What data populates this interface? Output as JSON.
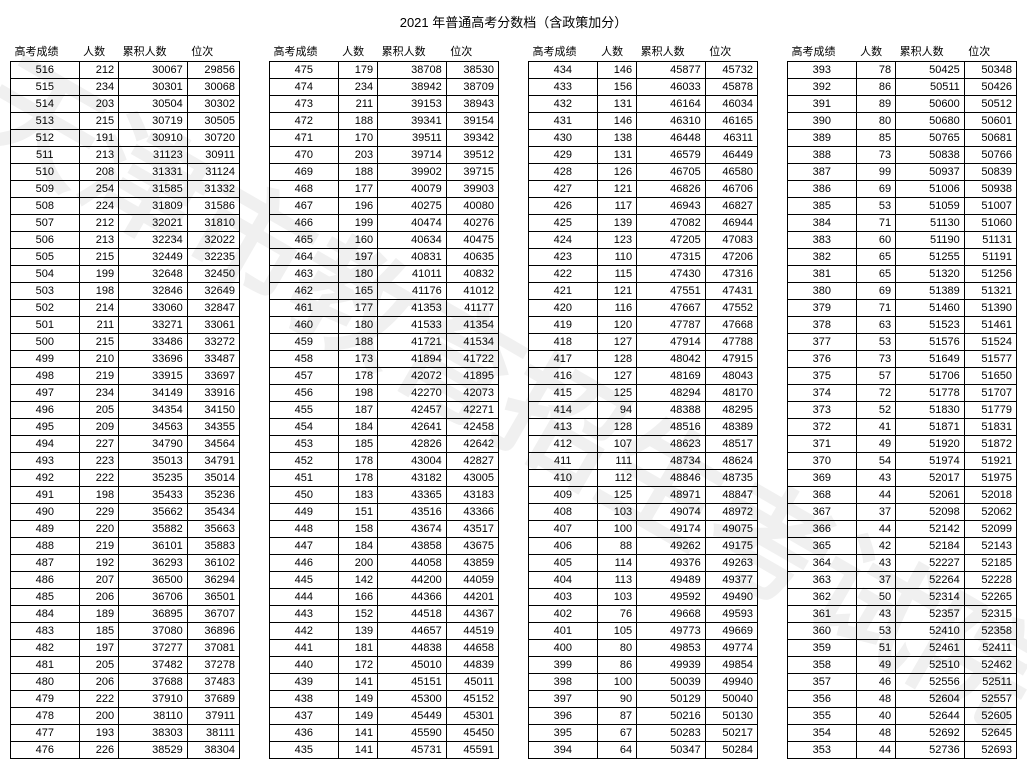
{
  "title": "2021 年普通高考分数档（含政策加分）",
  "watermark": "天津市教育招生考试院",
  "headers": [
    "高考成绩",
    "人数",
    "累积人数",
    "位次"
  ],
  "columns": [
    [
      [
        516,
        212,
        30067,
        29856
      ],
      [
        515,
        234,
        30301,
        30068
      ],
      [
        514,
        203,
        30504,
        30302
      ],
      [
        513,
        215,
        30719,
        30505
      ],
      [
        512,
        191,
        30910,
        30720
      ],
      [
        511,
        213,
        31123,
        30911
      ],
      [
        510,
        208,
        31331,
        31124
      ],
      [
        509,
        254,
        31585,
        31332
      ],
      [
        508,
        224,
        31809,
        31586
      ],
      [
        507,
        212,
        32021,
        31810
      ],
      [
        506,
        213,
        32234,
        32022
      ],
      [
        505,
        215,
        32449,
        32235
      ],
      [
        504,
        199,
        32648,
        32450
      ],
      [
        503,
        198,
        32846,
        32649
      ],
      [
        502,
        214,
        33060,
        32847
      ],
      [
        501,
        211,
        33271,
        33061
      ],
      [
        500,
        215,
        33486,
        33272
      ],
      [
        499,
        210,
        33696,
        33487
      ],
      [
        498,
        219,
        33915,
        33697
      ],
      [
        497,
        234,
        34149,
        33916
      ],
      [
        496,
        205,
        34354,
        34150
      ],
      [
        495,
        209,
        34563,
        34355
      ],
      [
        494,
        227,
        34790,
        34564
      ],
      [
        493,
        223,
        35013,
        34791
      ],
      [
        492,
        222,
        35235,
        35014
      ],
      [
        491,
        198,
        35433,
        35236
      ],
      [
        490,
        229,
        35662,
        35434
      ],
      [
        489,
        220,
        35882,
        35663
      ],
      [
        488,
        219,
        36101,
        35883
      ],
      [
        487,
        192,
        36293,
        36102
      ],
      [
        486,
        207,
        36500,
        36294
      ],
      [
        485,
        206,
        36706,
        36501
      ],
      [
        484,
        189,
        36895,
        36707
      ],
      [
        483,
        185,
        37080,
        36896
      ],
      [
        482,
        197,
        37277,
        37081
      ],
      [
        481,
        205,
        37482,
        37278
      ],
      [
        480,
        206,
        37688,
        37483
      ],
      [
        479,
        222,
        37910,
        37689
      ],
      [
        478,
        200,
        38110,
        37911
      ],
      [
        477,
        193,
        38303,
        38111
      ],
      [
        476,
        226,
        38529,
        38304
      ]
    ],
    [
      [
        475,
        179,
        38708,
        38530
      ],
      [
        474,
        234,
        38942,
        38709
      ],
      [
        473,
        211,
        39153,
        38943
      ],
      [
        472,
        188,
        39341,
        39154
      ],
      [
        471,
        170,
        39511,
        39342
      ],
      [
        470,
        203,
        39714,
        39512
      ],
      [
        469,
        188,
        39902,
        39715
      ],
      [
        468,
        177,
        40079,
        39903
      ],
      [
        467,
        196,
        40275,
        40080
      ],
      [
        466,
        199,
        40474,
        40276
      ],
      [
        465,
        160,
        40634,
        40475
      ],
      [
        464,
        197,
        40831,
        40635
      ],
      [
        463,
        180,
        41011,
        40832
      ],
      [
        462,
        165,
        41176,
        41012
      ],
      [
        461,
        177,
        41353,
        41177
      ],
      [
        460,
        180,
        41533,
        41354
      ],
      [
        459,
        188,
        41721,
        41534
      ],
      [
        458,
        173,
        41894,
        41722
      ],
      [
        457,
        178,
        42072,
        41895
      ],
      [
        456,
        198,
        42270,
        42073
      ],
      [
        455,
        187,
        42457,
        42271
      ],
      [
        454,
        184,
        42641,
        42458
      ],
      [
        453,
        185,
        42826,
        42642
      ],
      [
        452,
        178,
        43004,
        42827
      ],
      [
        451,
        178,
        43182,
        43005
      ],
      [
        450,
        183,
        43365,
        43183
      ],
      [
        449,
        151,
        43516,
        43366
      ],
      [
        448,
        158,
        43674,
        43517
      ],
      [
        447,
        184,
        43858,
        43675
      ],
      [
        446,
        200,
        44058,
        43859
      ],
      [
        445,
        142,
        44200,
        44059
      ],
      [
        444,
        166,
        44366,
        44201
      ],
      [
        443,
        152,
        44518,
        44367
      ],
      [
        442,
        139,
        44657,
        44519
      ],
      [
        441,
        181,
        44838,
        44658
      ],
      [
        440,
        172,
        45010,
        44839
      ],
      [
        439,
        141,
        45151,
        45011
      ],
      [
        438,
        149,
        45300,
        45152
      ],
      [
        437,
        149,
        45449,
        45301
      ],
      [
        436,
        141,
        45590,
        45450
      ],
      [
        435,
        141,
        45731,
        45591
      ]
    ],
    [
      [
        434,
        146,
        45877,
        45732
      ],
      [
        433,
        156,
        46033,
        45878
      ],
      [
        432,
        131,
        46164,
        46034
      ],
      [
        431,
        146,
        46310,
        46165
      ],
      [
        430,
        138,
        46448,
        46311
      ],
      [
        429,
        131,
        46579,
        46449
      ],
      [
        428,
        126,
        46705,
        46580
      ],
      [
        427,
        121,
        46826,
        46706
      ],
      [
        426,
        117,
        46943,
        46827
      ],
      [
        425,
        139,
        47082,
        46944
      ],
      [
        424,
        123,
        47205,
        47083
      ],
      [
        423,
        110,
        47315,
        47206
      ],
      [
        422,
        115,
        47430,
        47316
      ],
      [
        421,
        121,
        47551,
        47431
      ],
      [
        420,
        116,
        47667,
        47552
      ],
      [
        419,
        120,
        47787,
        47668
      ],
      [
        418,
        127,
        47914,
        47788
      ],
      [
        417,
        128,
        48042,
        47915
      ],
      [
        416,
        127,
        48169,
        48043
      ],
      [
        415,
        125,
        48294,
        48170
      ],
      [
        414,
        94,
        48388,
        48295
      ],
      [
        413,
        128,
        48516,
        48389
      ],
      [
        412,
        107,
        48623,
        48517
      ],
      [
        411,
        111,
        48734,
        48624
      ],
      [
        410,
        112,
        48846,
        48735
      ],
      [
        409,
        125,
        48971,
        48847
      ],
      [
        408,
        103,
        49074,
        48972
      ],
      [
        407,
        100,
        49174,
        49075
      ],
      [
        406,
        88,
        49262,
        49175
      ],
      [
        405,
        114,
        49376,
        49263
      ],
      [
        404,
        113,
        49489,
        49377
      ],
      [
        403,
        103,
        49592,
        49490
      ],
      [
        402,
        76,
        49668,
        49593
      ],
      [
        401,
        105,
        49773,
        49669
      ],
      [
        400,
        80,
        49853,
        49774
      ],
      [
        399,
        86,
        49939,
        49854
      ],
      [
        398,
        100,
        50039,
        49940
      ],
      [
        397,
        90,
        50129,
        50040
      ],
      [
        396,
        87,
        50216,
        50130
      ],
      [
        395,
        67,
        50283,
        50217
      ],
      [
        394,
        64,
        50347,
        50284
      ]
    ],
    [
      [
        393,
        78,
        50425,
        50348
      ],
      [
        392,
        86,
        50511,
        50426
      ],
      [
        391,
        89,
        50600,
        50512
      ],
      [
        390,
        80,
        50680,
        50601
      ],
      [
        389,
        85,
        50765,
        50681
      ],
      [
        388,
        73,
        50838,
        50766
      ],
      [
        387,
        99,
        50937,
        50839
      ],
      [
        386,
        69,
        51006,
        50938
      ],
      [
        385,
        53,
        51059,
        51007
      ],
      [
        384,
        71,
        51130,
        51060
      ],
      [
        383,
        60,
        51190,
        51131
      ],
      [
        382,
        65,
        51255,
        51191
      ],
      [
        381,
        65,
        51320,
        51256
      ],
      [
        380,
        69,
        51389,
        51321
      ],
      [
        379,
        71,
        51460,
        51390
      ],
      [
        378,
        63,
        51523,
        51461
      ],
      [
        377,
        53,
        51576,
        51524
      ],
      [
        376,
        73,
        51649,
        51577
      ],
      [
        375,
        57,
        51706,
        51650
      ],
      [
        374,
        72,
        51778,
        51707
      ],
      [
        373,
        52,
        51830,
        51779
      ],
      [
        372,
        41,
        51871,
        51831
      ],
      [
        371,
        49,
        51920,
        51872
      ],
      [
        370,
        54,
        51974,
        51921
      ],
      [
        369,
        43,
        52017,
        51975
      ],
      [
        368,
        44,
        52061,
        52018
      ],
      [
        367,
        37,
        52098,
        52062
      ],
      [
        366,
        44,
        52142,
        52099
      ],
      [
        365,
        42,
        52184,
        52143
      ],
      [
        364,
        43,
        52227,
        52185
      ],
      [
        363,
        37,
        52264,
        52228
      ],
      [
        362,
        50,
        52314,
        52265
      ],
      [
        361,
        43,
        52357,
        52315
      ],
      [
        360,
        53,
        52410,
        52358
      ],
      [
        359,
        51,
        52461,
        52411
      ],
      [
        358,
        49,
        52510,
        52462
      ],
      [
        357,
        46,
        52556,
        52511
      ],
      [
        356,
        48,
        52604,
        52557
      ],
      [
        355,
        40,
        52644,
        52605
      ],
      [
        354,
        48,
        52692,
        52645
      ],
      [
        353,
        44,
        52736,
        52693
      ]
    ]
  ]
}
